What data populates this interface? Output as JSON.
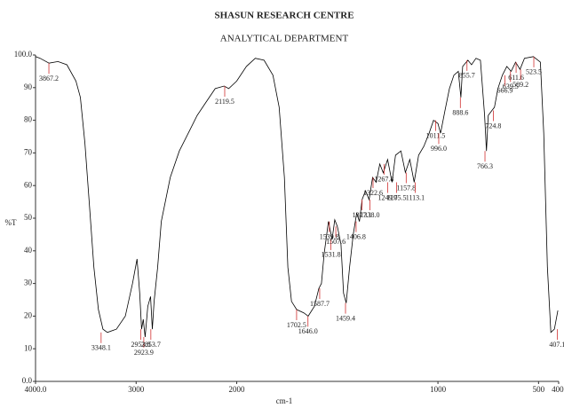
{
  "chart_data": {
    "type": "line",
    "title": "SHASUN RESEARCH CENTRE",
    "subtitle": "ANALYTICAL DEPARTMENT",
    "x_label": "cm-1",
    "y_label": "%T",
    "color": "#000000",
    "peak_color": "#d03030",
    "grid": false,
    "x_scale_change": 2000,
    "x_scale_factor": 2,
    "xlim": [
      4000,
      400
    ],
    "xticks": [
      {
        "value": 4000,
        "label": "4000.0"
      },
      3000,
      2000,
      1000,
      500,
      {
        "value": 400,
        "label": "400."
      }
    ],
    "ylim": [
      0,
      100
    ],
    "yticks": [
      {
        "value": 0,
        "label": "0.0"
      },
      10,
      20,
      30,
      40,
      50,
      60,
      70,
      80,
      90,
      {
        "value": 100,
        "label": "100.0"
      }
    ],
    "x": [
      4000,
      3955,
      3866,
      3777,
      3688,
      3598,
      3554,
      3509,
      3464,
      3420,
      3375,
      3330,
      3286,
      3196,
      3107,
      3036,
      2991,
      2964,
      2946,
      2929,
      2911,
      2884,
      2857,
      2839,
      2821,
      2786,
      2750,
      2661,
      2571,
      2482,
      2393,
      2304,
      2214,
      2125,
      2080,
      2000,
      1952,
      1908,
      1864,
      1820,
      1789,
      1763,
      1746,
      1728,
      1702,
      1667,
      1645,
      1614,
      1592,
      1579,
      1566,
      1544,
      1526,
      1513,
      1500,
      1482,
      1469,
      1456,
      1439,
      1421,
      1404,
      1390,
      1377,
      1360,
      1342,
      1325,
      1307,
      1289,
      1272,
      1250,
      1228,
      1211,
      1184,
      1162,
      1140,
      1118,
      1096,
      1070,
      1044,
      1022,
      1000,
      987,
      965,
      943,
      921,
      899,
      886,
      877,
      851,
      833,
      811,
      789,
      768,
      759,
      750,
      732,
      719,
      702,
      680,
      658,
      636,
      614,
      592,
      570,
      526,
      491,
      474,
      456,
      439,
      421,
      404
    ],
    "values": [
      99.5,
      99,
      97.5,
      98,
      97,
      92,
      87,
      73,
      54,
      35,
      22,
      16,
      15,
      16,
      20,
      30,
      37.5,
      27,
      16,
      19,
      13.6,
      23,
      26,
      16,
      24.5,
      35,
      49,
      62.5,
      70.6,
      76,
      81.5,
      85.6,
      89.7,
      90.5,
      89.7,
      92,
      96.5,
      99,
      98.4,
      93.8,
      84,
      62.5,
      35,
      24.5,
      22,
      21,
      20,
      23,
      28.5,
      30,
      39,
      49,
      43.5,
      49.5,
      47.5,
      42,
      27,
      24,
      35,
      45,
      51.6,
      49,
      55.7,
      58.4,
      55.7,
      62.5,
      61,
      66.6,
      63.9,
      68,
      61,
      69.3,
      70.6,
      64,
      68,
      61,
      69.3,
      72,
      76,
      80,
      79,
      76,
      83,
      89.7,
      93.8,
      95,
      87,
      96.5,
      98.4,
      97,
      99,
      98.4,
      81.5,
      70.6,
      81.5,
      83,
      84,
      89.7,
      93.8,
      96.5,
      95,
      97.8,
      95.6,
      99,
      99.5,
      97.8,
      76,
      35,
      15,
      16,
      21.7
    ],
    "peaks": {
      "x": [
        3867.2,
        3348.1,
        2953.8,
        2923.9,
        2853.7,
        2119.5,
        1702.5,
        1646.0,
        1587.7,
        1539.8,
        1531.8,
        1507.6,
        1459.4,
        1406.8,
        1377.1,
        1338.0,
        1322.6,
        1267.8,
        1249.7,
        1205.5,
        1157.8,
        1113.1,
        1011.5,
        996.0,
        888.6,
        855.7,
        766.3,
        724.8,
        666.9,
        639.5,
        611.6,
        589.2,
        523.5,
        407.1
      ],
      "y": [
        97.5,
        15,
        16,
        13.6,
        16,
        90.5,
        22,
        20,
        28.5,
        49,
        43.5,
        47.5,
        24,
        49,
        55.7,
        55.7,
        62.5,
        66.6,
        61,
        61,
        64,
        61,
        80,
        76,
        87,
        98.4,
        70.6,
        83,
        93.8,
        95,
        97.8,
        95.6,
        99.5,
        16
      ],
      "value_labels": [
        "3867.2",
        "3348.1",
        "2953.8",
        "2923.9",
        "2853.7",
        "2119.5",
        "1702.5",
        "1646.0",
        "1587.7",
        "1539.8",
        "1531.8",
        "1507.6",
        "1459.4",
        "1406.8",
        "1377.1",
        "1338.0",
        "1322.6",
        "1267.8",
        "1249.7",
        "1205.5",
        "1157.8",
        "1113.1",
        "1011.5",
        "996.0",
        "888.6",
        "855.7",
        "766.3",
        "724.8",
        "666.9",
        "639.5",
        "611.6",
        "589.2",
        "523.5",
        "407.1"
      ]
    }
  }
}
